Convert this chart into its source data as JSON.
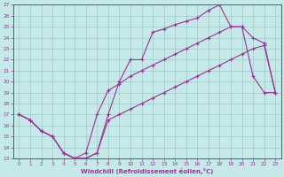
{
  "xlabel": "Windchill (Refroidissement éolien,°C)",
  "xlim": [
    -0.5,
    23.5
  ],
  "ylim": [
    13,
    27
  ],
  "xticks": [
    0,
    1,
    2,
    3,
    4,
    5,
    6,
    7,
    8,
    9,
    10,
    11,
    12,
    13,
    14,
    15,
    16,
    17,
    18,
    19,
    20,
    21,
    22,
    23
  ],
  "yticks": [
    13,
    14,
    15,
    16,
    17,
    18,
    19,
    20,
    21,
    22,
    23,
    24,
    25,
    26,
    27
  ],
  "background_color": "#c5e8e8",
  "grid_color": "#a0c8c8",
  "line_color": "#993399",
  "line1_x": [
    0,
    1,
    2,
    3,
    4,
    5,
    6,
    7,
    8,
    9,
    10,
    11,
    12,
    13,
    14,
    15,
    16,
    17,
    18,
    19,
    20,
    21,
    22,
    23
  ],
  "line1_y": [
    17.0,
    16.5,
    15.5,
    15.0,
    13.5,
    13.0,
    13.0,
    13.5,
    17.0,
    20.0,
    22.0,
    22.0,
    24.5,
    24.8,
    25.2,
    25.5,
    25.8,
    26.5,
    27.0,
    25.0,
    25.0,
    20.5,
    19.0,
    19.0
  ],
  "line2_x": [
    0,
    1,
    2,
    3,
    4,
    5,
    6,
    7,
    8,
    9,
    10,
    11,
    12,
    13,
    14,
    15,
    16,
    17,
    18,
    19,
    20,
    21,
    22,
    23
  ],
  "line2_y": [
    17.0,
    16.5,
    15.5,
    15.0,
    13.5,
    13.0,
    13.5,
    17.0,
    19.2,
    19.8,
    20.5,
    21.0,
    21.5,
    22.0,
    22.5,
    23.0,
    23.5,
    24.0,
    24.5,
    25.0,
    25.0,
    24.0,
    23.5,
    19.0
  ],
  "line3_x": [
    0,
    1,
    2,
    3,
    4,
    5,
    6,
    7,
    8,
    9,
    10,
    11,
    12,
    13,
    14,
    15,
    16,
    17,
    18,
    19,
    20,
    21,
    22,
    23
  ],
  "line3_y": [
    17.0,
    16.5,
    15.5,
    15.0,
    13.5,
    13.0,
    13.0,
    13.5,
    16.5,
    17.0,
    17.5,
    18.0,
    18.5,
    19.0,
    19.5,
    20.0,
    20.5,
    21.0,
    21.5,
    22.0,
    22.5,
    23.0,
    23.3,
    19.0
  ]
}
